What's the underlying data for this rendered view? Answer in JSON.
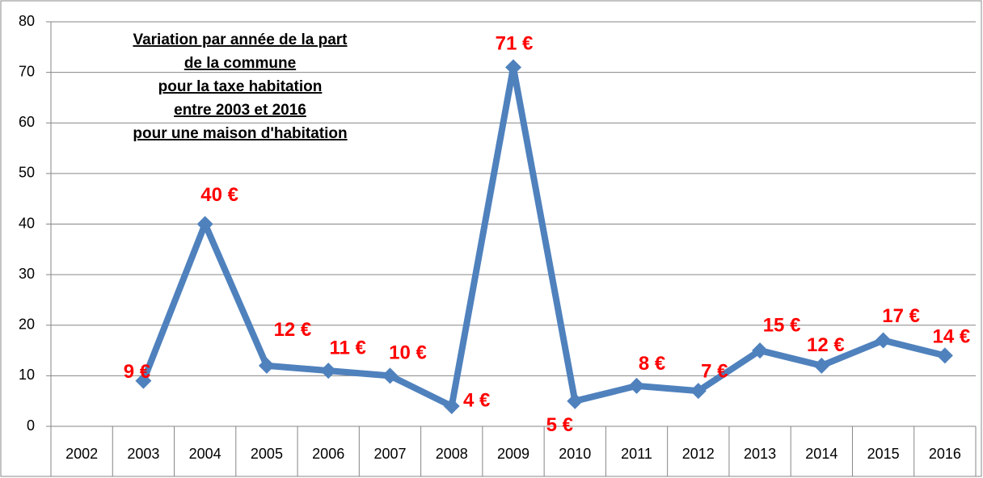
{
  "chart_data": {
    "type": "line",
    "title": [
      "Variation par année de la part",
      "de la commune",
      "pour la taxe habitation",
      "entre 2003 et 2016",
      "pour une maison d'habitation"
    ],
    "categories": [
      "2002",
      "2003",
      "2004",
      "2005",
      "2006",
      "2007",
      "2008",
      "2009",
      "2010",
      "2011",
      "2012",
      "2013",
      "2014",
      "2015",
      "2016"
    ],
    "values": [
      null,
      9,
      40,
      12,
      11,
      10,
      4,
      71,
      5,
      8,
      7,
      15,
      12,
      17,
      14
    ],
    "value_labels": [
      null,
      "9 €",
      "40 €",
      "12 €",
      "11 €",
      "10 €",
      "4 €",
      "71 €",
      "5 €",
      "8 €",
      "7 €",
      "15 €",
      "12 €",
      "17 €",
      "14 €"
    ],
    "color": "#4f81bd",
    "label_color": "#ff0000",
    "ylim": [
      0,
      80
    ],
    "yticks": [
      0,
      10,
      20,
      30,
      40,
      50,
      60,
      70,
      80
    ],
    "grid": true
  }
}
